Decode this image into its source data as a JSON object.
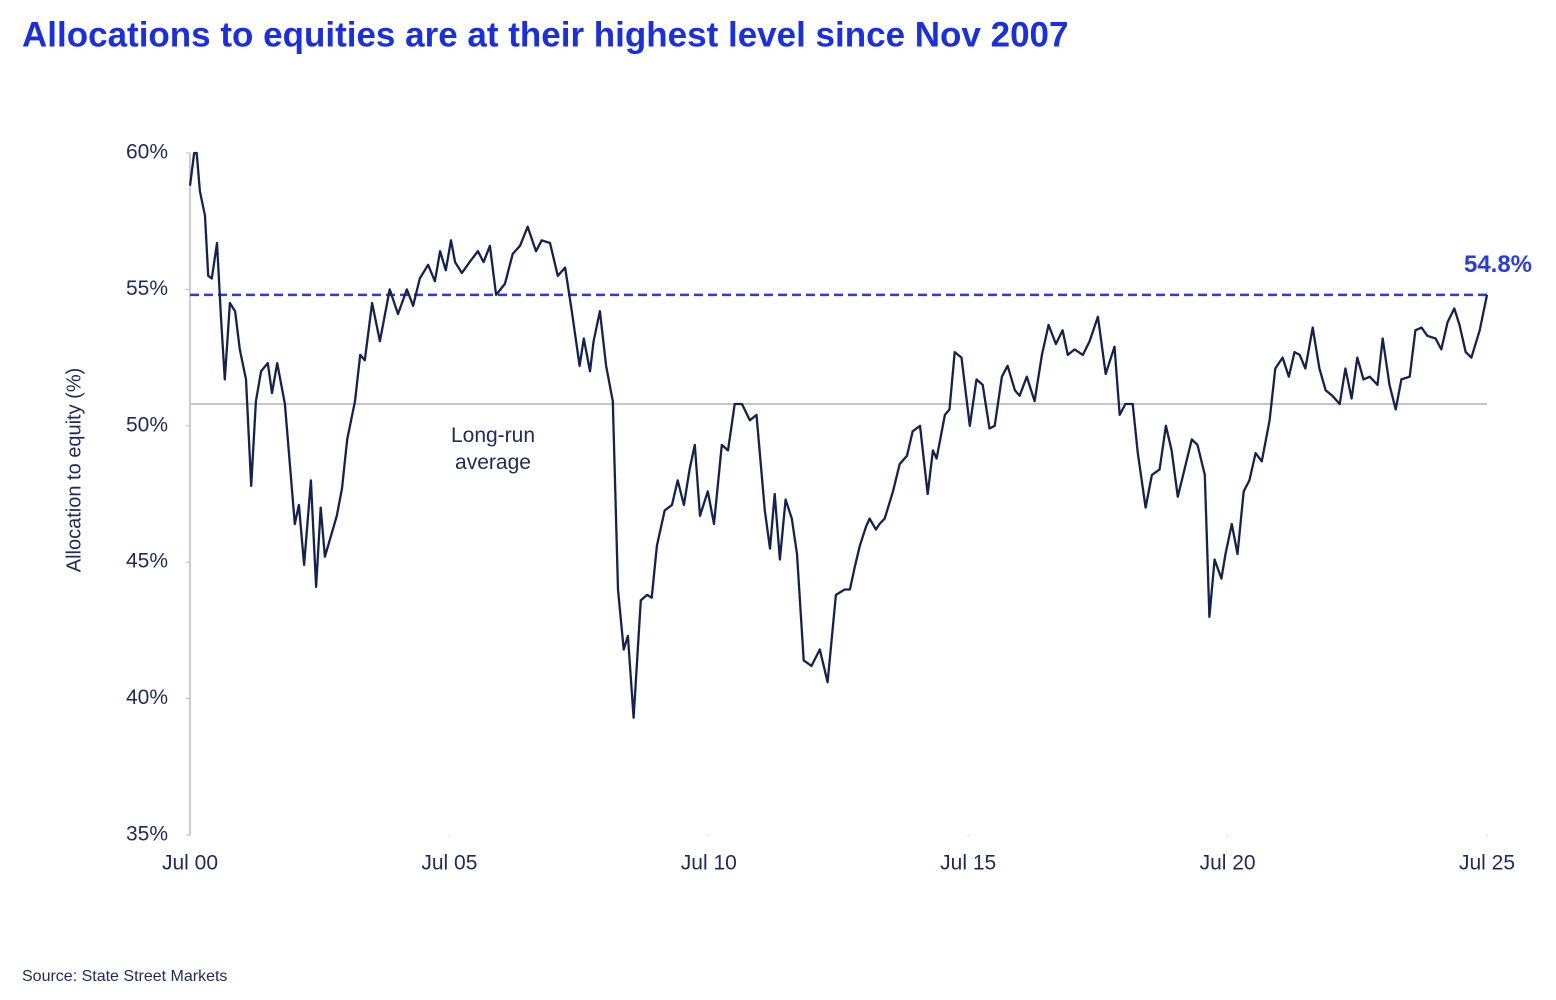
{
  "chart_data": {
    "type": "line",
    "title": "Allocations to equities are at their highest level since Nov 2007",
    "y_label": "Allocation to equity (%)",
    "source": "Source: State Street Markets",
    "xlim": [
      2000.5,
      2025.5
    ],
    "xticks": [
      {
        "value": 2000.5,
        "label": "Jul 00"
      },
      {
        "value": 2005.5,
        "label": "Jul 05"
      },
      {
        "value": 2010.5,
        "label": "Jul 10"
      },
      {
        "value": 2015.5,
        "label": "Jul 15"
      },
      {
        "value": 2020.5,
        "label": "Jul 20"
      },
      {
        "value": 2025.5,
        "label": "Jul 25"
      }
    ],
    "ylim": [
      35,
      60
    ],
    "yticks": [
      {
        "value": 35,
        "label": "35%"
      },
      {
        "value": 40,
        "label": "40%"
      },
      {
        "value": 45,
        "label": "45%"
      },
      {
        "value": 50,
        "label": "50%"
      },
      {
        "value": 55,
        "label": "55%"
      },
      {
        "value": 60,
        "label": "60%"
      }
    ],
    "reference_lines": [
      {
        "value": 54.8,
        "label": "54.8%",
        "style": "dashed",
        "color": "#2a3ce0"
      },
      {
        "value": 50.8,
        "label": "Long-run average",
        "style": "solid",
        "color": "#c4c4cc"
      }
    ],
    "x": [
      2000.5,
      2000.58,
      2000.63,
      2000.69,
      2000.79,
      2000.85,
      2000.92,
      2001.02,
      2001.1,
      2001.17,
      2001.27,
      2001.37,
      2001.46,
      2001.58,
      2001.68,
      2001.77,
      2001.87,
      2002.0,
      2002.08,
      2002.18,
      2002.33,
      2002.52,
      2002.6,
      2002.7,
      2002.83,
      2002.93,
      2003.02,
      2003.1,
      2003.33,
      2003.43,
      2003.53,
      2003.68,
      2003.78,
      2003.87,
      2004.01,
      2004.16,
      2004.35,
      2004.51,
      2004.68,
      2004.8,
      2004.93,
      2005.09,
      2005.22,
      2005.32,
      2005.43,
      2005.53,
      2005.61,
      2005.74,
      2005.89,
      2006.05,
      2006.16,
      2006.28,
      2006.4,
      2006.57,
      2006.72,
      2006.86,
      2007.01,
      2007.17,
      2007.28,
      2007.44,
      2007.59,
      2007.73,
      2007.86,
      2008.01,
      2008.09,
      2008.21,
      2008.28,
      2008.4,
      2008.52,
      2008.65,
      2008.75,
      2008.86,
      2008.94,
      2009.05,
      2009.19,
      2009.31,
      2009.4,
      2009.5,
      2009.65,
      2009.79,
      2009.9,
      2010.02,
      2010.13,
      2010.23,
      2010.33,
      2010.48,
      2010.6,
      2010.75,
      2010.87,
      2011.0,
      2011.14,
      2011.29,
      2011.42,
      2011.58,
      2011.68,
      2011.77,
      2011.87,
      2011.98,
      2012.1,
      2012.2,
      2012.33,
      2012.48,
      2012.64,
      2012.79,
      2012.95,
      2013.12,
      2013.22,
      2013.31,
      2013.41,
      2013.53,
      2013.6,
      2013.72,
      2013.79,
      2013.89,
      2014.05,
      2014.18,
      2014.32,
      2014.43,
      2014.57,
      2014.72,
      2014.82,
      2014.89,
      2015.05,
      2015.14,
      2015.24,
      2015.37,
      2015.53,
      2015.66,
      2015.78,
      2015.91,
      2016.01,
      2016.15,
      2016.26,
      2016.4,
      2016.49,
      2016.63,
      2016.78,
      2016.92,
      2017.05,
      2017.19,
      2017.32,
      2017.42,
      2017.55,
      2017.71,
      2017.84,
      2018.0,
      2018.15,
      2018.32,
      2018.42,
      2018.53,
      2018.67,
      2018.77,
      2018.92,
      2019.04,
      2019.19,
      2019.31,
      2019.42,
      2019.54,
      2019.67,
      2019.81,
      2019.92,
      2020.06,
      2020.15,
      2020.25,
      2020.38,
      2020.46,
      2020.58,
      2020.69,
      2020.81,
      2020.92,
      2021.04,
      2021.16,
      2021.31,
      2021.42,
      2021.56,
      2021.68,
      2021.79,
      2021.89,
      2022.0,
      2022.14,
      2022.27,
      2022.39,
      2022.52,
      2022.66,
      2022.77,
      2022.89,
      2023.0,
      2023.12,
      2023.24,
      2023.39,
      2023.49,
      2023.62,
      2023.74,
      2023.85,
      2024.01,
      2024.12,
      2024.24,
      2024.35,
      2024.51,
      2024.62,
      2024.74,
      2024.87,
      2024.97,
      2025.09,
      2025.2,
      2025.36,
      2025.5
    ],
    "series": [
      {
        "name": "Allocation to equity",
        "color": "#13224f",
        "values": [
          58.8,
          60,
          60,
          58.6,
          57.7,
          55.5,
          55.4,
          56.7,
          53.9,
          51.7,
          54.5,
          54.2,
          52.8,
          51.7,
          47.8,
          50.9,
          52.0,
          52.3,
          51.2,
          52.3,
          50.8,
          46.4,
          47.1,
          44.9,
          48.0,
          44.1,
          47.0,
          45.2,
          46.7,
          47.7,
          49.5,
          50.9,
          52.6,
          52.4,
          54.5,
          53.1,
          55.0,
          54.1,
          55.0,
          54.4,
          55.4,
          55.9,
          55.3,
          56.4,
          55.7,
          56.8,
          56.0,
          55.6,
          56.0,
          56.4,
          56.0,
          56.6,
          54.8,
          55.2,
          56.3,
          56.6,
          57.3,
          56.4,
          56.8,
          56.7,
          55.5,
          55.8,
          54.2,
          52.2,
          53.2,
          52.0,
          53.1,
          54.2,
          52.2,
          50.9,
          44.0,
          41.8,
          42.3,
          39.3,
          43.6,
          43.8,
          43.7,
          45.6,
          46.9,
          47.1,
          48.0,
          47.1,
          48.4,
          49.3,
          46.7,
          47.6,
          46.4,
          49.3,
          49.1,
          50.8,
          50.8,
          50.2,
          50.4,
          46.9,
          45.5,
          47.5,
          45.1,
          47.3,
          46.6,
          45.3,
          41.4,
          41.2,
          41.8,
          40.6,
          43.8,
          44.0,
          44.0,
          44.8,
          45.6,
          46.3,
          46.6,
          46.2,
          46.4,
          46.6,
          47.6,
          48.6,
          48.9,
          49.8,
          50.0,
          47.5,
          49.1,
          48.8,
          50.4,
          50.6,
          52.7,
          52.5,
          50.0,
          51.7,
          51.5,
          49.9,
          50.0,
          51.8,
          52.2,
          51.3,
          51.1,
          51.8,
          50.9,
          52.6,
          53.7,
          53.0,
          53.5,
          52.6,
          52.8,
          52.6,
          53.1,
          54.0,
          51.9,
          52.9,
          50.4,
          50.8,
          50.8,
          49.0,
          47.0,
          48.2,
          48.4,
          50.0,
          49.1,
          47.4,
          48.4,
          49.5,
          49.3,
          48.2,
          43.0,
          45.1,
          44.4,
          45.3,
          46.4,
          45.3,
          47.6,
          48.0,
          49.0,
          48.7,
          50.2,
          52.1,
          52.5,
          51.8,
          52.7,
          52.6,
          52.1,
          53.6,
          52.1,
          51.3,
          51.1,
          50.8,
          52.1,
          51.0,
          52.5,
          51.7,
          51.8,
          51.5,
          53.2,
          51.5,
          50.6,
          51.7,
          51.8,
          53.5,
          53.6,
          53.3,
          53.2,
          52.8,
          53.8,
          54.3,
          53.7,
          52.7,
          52.5,
          53.5,
          54.8
        ]
      }
    ]
  }
}
